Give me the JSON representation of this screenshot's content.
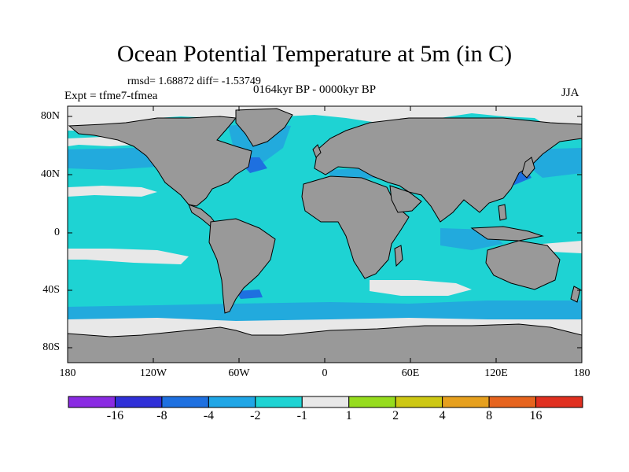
{
  "title": "Ocean Potential Temperature at 5m (in C)",
  "stats": "rmsd= 1.68872 diff= -1.53749",
  "period": "0164kyr BP - 0000kyr BP",
  "experiment": "Expt = tfme7-tfmea",
  "season": "JJA",
  "map": {
    "projection": "cylindrical-equidistant",
    "lon_range": [
      -180,
      180
    ],
    "lat_range": [
      -90,
      90
    ],
    "y_ticks": [
      "80N",
      "40N",
      "0",
      "40S",
      "80S"
    ],
    "x_ticks": [
      "180",
      "120W",
      "60W",
      "0",
      "60E",
      "120E",
      "180"
    ],
    "colors": {
      "land": "#999999",
      "ocean_dominant": "#1ed3d3",
      "near_zero": "#e8e8e8",
      "moderate_cooling": "#22aadd",
      "strong_cooling": "#1e70e0",
      "very_strong_cooling": "#3035d0",
      "coastline": "#000000"
    }
  },
  "colorbar": {
    "colors": [
      "#8a2be2",
      "#3030d8",
      "#1e70e0",
      "#20a6e6",
      "#1ed3d3",
      "#e8e8e8",
      "#96dc1e",
      "#cdc814",
      "#e6a01e",
      "#e6641e",
      "#e03020"
    ],
    "labels": [
      "-16",
      "-8",
      "-4",
      "-2",
      "-1",
      "1",
      "2",
      "4",
      "8",
      "16"
    ]
  }
}
